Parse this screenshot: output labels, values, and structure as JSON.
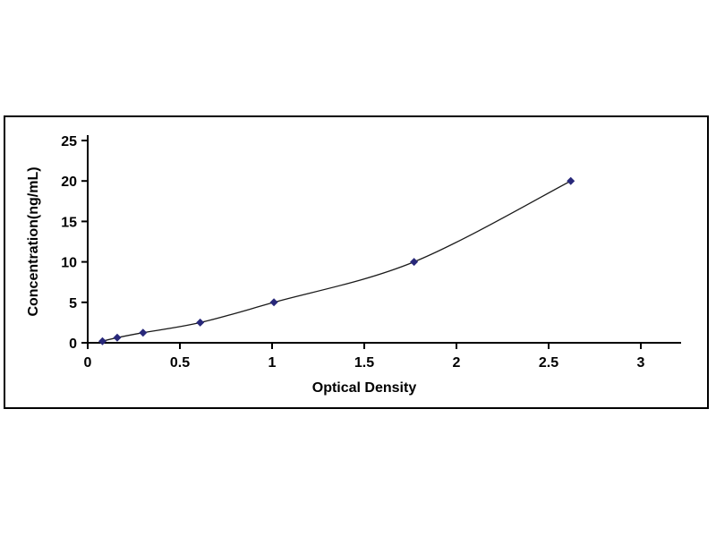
{
  "page": {
    "background_color": "#ffffff"
  },
  "chart_data": {
    "type": "line",
    "title": "",
    "xlabel": "Optical Density",
    "ylabel": "Concentration(ng/mL)",
    "x": [
      0.08,
      0.16,
      0.3,
      0.61,
      1.01,
      1.77,
      2.62
    ],
    "y": [
      0.2,
      0.63,
      1.25,
      2.5,
      5,
      10,
      20
    ],
    "xlim": [
      0,
      3
    ],
    "ylim": [
      0,
      25
    ],
    "x_ticks": [
      0,
      0.5,
      1,
      1.5,
      2,
      2.5,
      3
    ],
    "x_tick_labels": [
      "0",
      "0.5",
      "1",
      "1.5",
      "2",
      "2.5",
      "3"
    ],
    "y_ticks": [
      0,
      5,
      10,
      15,
      20,
      25
    ],
    "y_tick_labels": [
      "0",
      "5",
      "10",
      "15",
      "20",
      "25"
    ],
    "grid": false,
    "legend": "none",
    "marker": "diamond",
    "marker_color": "#28287A",
    "line_color": "#1a1a1a",
    "axis_color": "#000000",
    "frame_color": "#000000"
  }
}
